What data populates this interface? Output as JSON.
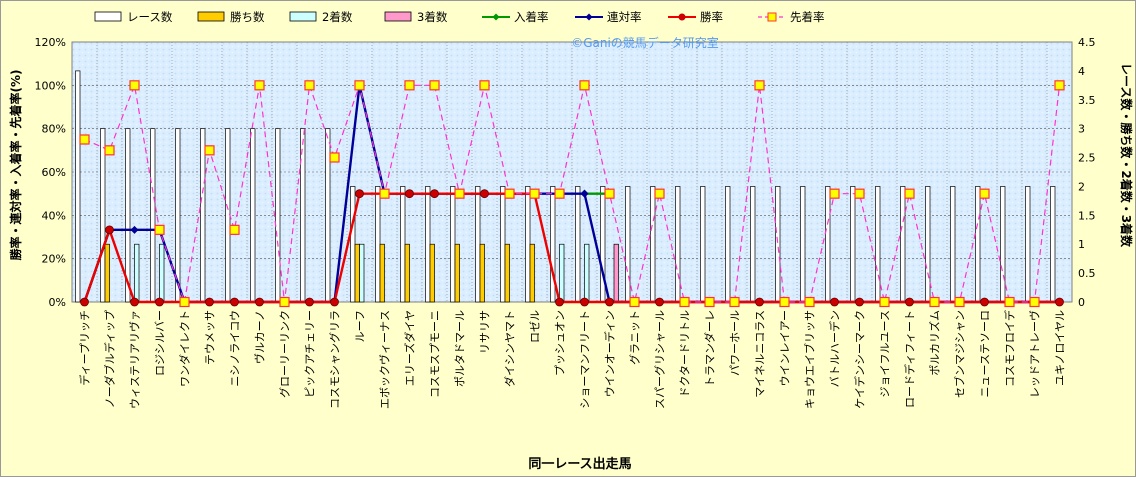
{
  "chart_data": {
    "type": "bar",
    "watermark": "©Ganiの競馬データ研究室",
    "xlabel": "同一レース出走馬",
    "ylabel": "勝率・連対率・入着率・先着率(%)",
    "ylabel_right": "レース数・勝ち数・2着数・3着数",
    "ylim": [
      0,
      120
    ],
    "ylim_right": [
      0,
      4.5
    ],
    "yticks": [
      "0%",
      "20%",
      "40%",
      "60%",
      "80%",
      "100%",
      "120%"
    ],
    "yticks_right": [
      "0",
      "0.5",
      "1",
      "1.5",
      "2",
      "2.5",
      "3",
      "3.5",
      "4",
      "4.5"
    ],
    "categories": [
      "ディープリッチ",
      "ノーダブルディップ",
      "ウィステリアリヴァ",
      "ロジシルバー",
      "ワンダイレクト",
      "テウメッサ",
      "ニシノライコウ",
      "ヴルカーノ",
      "グローリーリンク",
      "ピックアチェリー",
      "コスモシャングリラ",
      "ルーフ",
      "エボックヴィーナス",
      "エリーズダイヤ",
      "コスモスプモーニ",
      "ポルタドマール",
      "リサリサ",
      "ダイシンヤマト",
      "ロゼル",
      "プッシュオン",
      "ショーマンフリート",
      "ウインオーディン",
      "グラニット",
      "スパーグリシャール",
      "ドクタードリトル",
      "トラマンダーレ",
      "パワーホール",
      "マイネルニコラス",
      "ウインレイアー",
      "キョウエイブリッサ",
      "バトルハーデン",
      "ケイデンシーマーク",
      "ジョイフルユース",
      "ロードディフィート",
      "ポルカリズム",
      "セブンマジシャン",
      "ニューステソーロ",
      "コスモフロイデ",
      "レッドアトレーヴ",
      "ユキノロイヤル"
    ],
    "series": [
      {
        "name": "レース数",
        "axis": "right",
        "kind": "bar",
        "color": "#ffffff",
        "values": [
          4,
          3,
          3,
          3,
          3,
          3,
          3,
          3,
          3,
          3,
          3,
          2,
          2,
          2,
          2,
          2,
          2,
          2,
          2,
          2,
          2,
          2,
          2,
          2,
          2,
          2,
          2,
          2,
          2,
          2,
          2,
          2,
          2,
          2,
          2,
          2,
          2,
          2,
          2,
          2
        ]
      },
      {
        "name": "勝ち数",
        "axis": "right",
        "kind": "bar",
        "color": "#ffcc00",
        "values": [
          0,
          1,
          0,
          0,
          0,
          0,
          0,
          0,
          0,
          0,
          0,
          1,
          1,
          1,
          1,
          1,
          1,
          1,
          1,
          0,
          0,
          0,
          0,
          0,
          0,
          0,
          0,
          0,
          0,
          0,
          0,
          0,
          0,
          0,
          0,
          0,
          0,
          0,
          0,
          0
        ]
      },
      {
        "name": "2着数",
        "axis": "right",
        "kind": "bar",
        "color": "#ccffff",
        "values": [
          0,
          0,
          1,
          1,
          0,
          0,
          0,
          0,
          0,
          0,
          0,
          1,
          0,
          0,
          0,
          0,
          0,
          0,
          0,
          1,
          1,
          0,
          0,
          0,
          0,
          0,
          0,
          0,
          0,
          0,
          0,
          0,
          0,
          0,
          0,
          0,
          0,
          0,
          0,
          0
        ]
      },
      {
        "name": "3着数",
        "axis": "right",
        "kind": "bar",
        "color": "#ff99cc",
        "values": [
          0,
          0,
          0,
          0,
          0,
          0,
          0,
          0,
          0,
          0,
          0,
          0,
          0,
          0,
          0,
          0,
          0,
          0,
          0,
          0,
          0,
          1,
          0,
          0,
          0,
          0,
          0,
          0,
          0,
          0,
          0,
          0,
          0,
          0,
          0,
          0,
          0,
          0,
          0,
          0
        ]
      },
      {
        "name": "入着率",
        "axis": "left",
        "kind": "line",
        "color": "#009900",
        "values": [
          0,
          33.3,
          null,
          null,
          null,
          null,
          null,
          null,
          null,
          null,
          null,
          null,
          null,
          null,
          null,
          null,
          null,
          null,
          null,
          null,
          50,
          50,
          null,
          null,
          null,
          null,
          null,
          null,
          null,
          null,
          null,
          null,
          null,
          null,
          null,
          null,
          null,
          null,
          null,
          null
        ]
      },
      {
        "name": "連対率",
        "axis": "left",
        "kind": "line",
        "color": "#000099",
        "values": [
          0,
          33.3,
          33.3,
          33.3,
          0,
          0,
          0,
          0,
          0,
          0,
          0,
          100,
          50,
          50,
          50,
          50,
          50,
          50,
          50,
          50,
          50,
          0,
          0,
          0,
          0,
          0,
          0,
          0,
          0,
          0,
          0,
          0,
          0,
          0,
          0,
          0,
          0,
          0,
          0,
          0
        ]
      },
      {
        "name": "勝率",
        "axis": "left",
        "kind": "line",
        "color": "#ee0000",
        "values": [
          0,
          33.3,
          0,
          0,
          0,
          0,
          0,
          0,
          0,
          0,
          0,
          50,
          50,
          50,
          50,
          50,
          50,
          50,
          50,
          0,
          0,
          0,
          0,
          0,
          0,
          0,
          0,
          0,
          0,
          0,
          0,
          0,
          0,
          0,
          0,
          0,
          0,
          0,
          0,
          0
        ]
      },
      {
        "name": "先着率",
        "axis": "left",
        "kind": "line",
        "color": "#ff33cc",
        "values": [
          75,
          70,
          100,
          33.3,
          0,
          70,
          33.3,
          100,
          0,
          100,
          66.7,
          100,
          50,
          100,
          100,
          50,
          100,
          50,
          50,
          50,
          100,
          50,
          0,
          50,
          0,
          0,
          0,
          100,
          0,
          0,
          50,
          50,
          0,
          50,
          0,
          0,
          50,
          0,
          0,
          100
        ]
      }
    ],
    "legend_position": "top",
    "grid": true
  }
}
